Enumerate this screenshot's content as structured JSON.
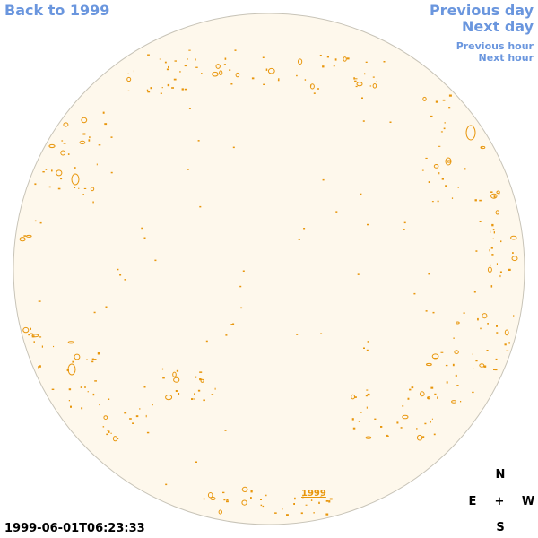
{
  "nav": {
    "back_label": "Back to 1999",
    "prev_day_label": "Previous day",
    "next_day_label": "Next day",
    "prev_hour_label": "Previous hour",
    "next_hour_label": "Next hour"
  },
  "compass": {
    "north": "N",
    "south": "S",
    "east": "E",
    "west": "W",
    "center": "+"
  },
  "timestamp": "1999-06-01T06:23:33",
  "year_link": "1999",
  "colors": {
    "disk_fill": "#fef8ec",
    "disk_stroke": "#c8c4b8",
    "contour": "#e8960c",
    "link": "#6a96de"
  }
}
